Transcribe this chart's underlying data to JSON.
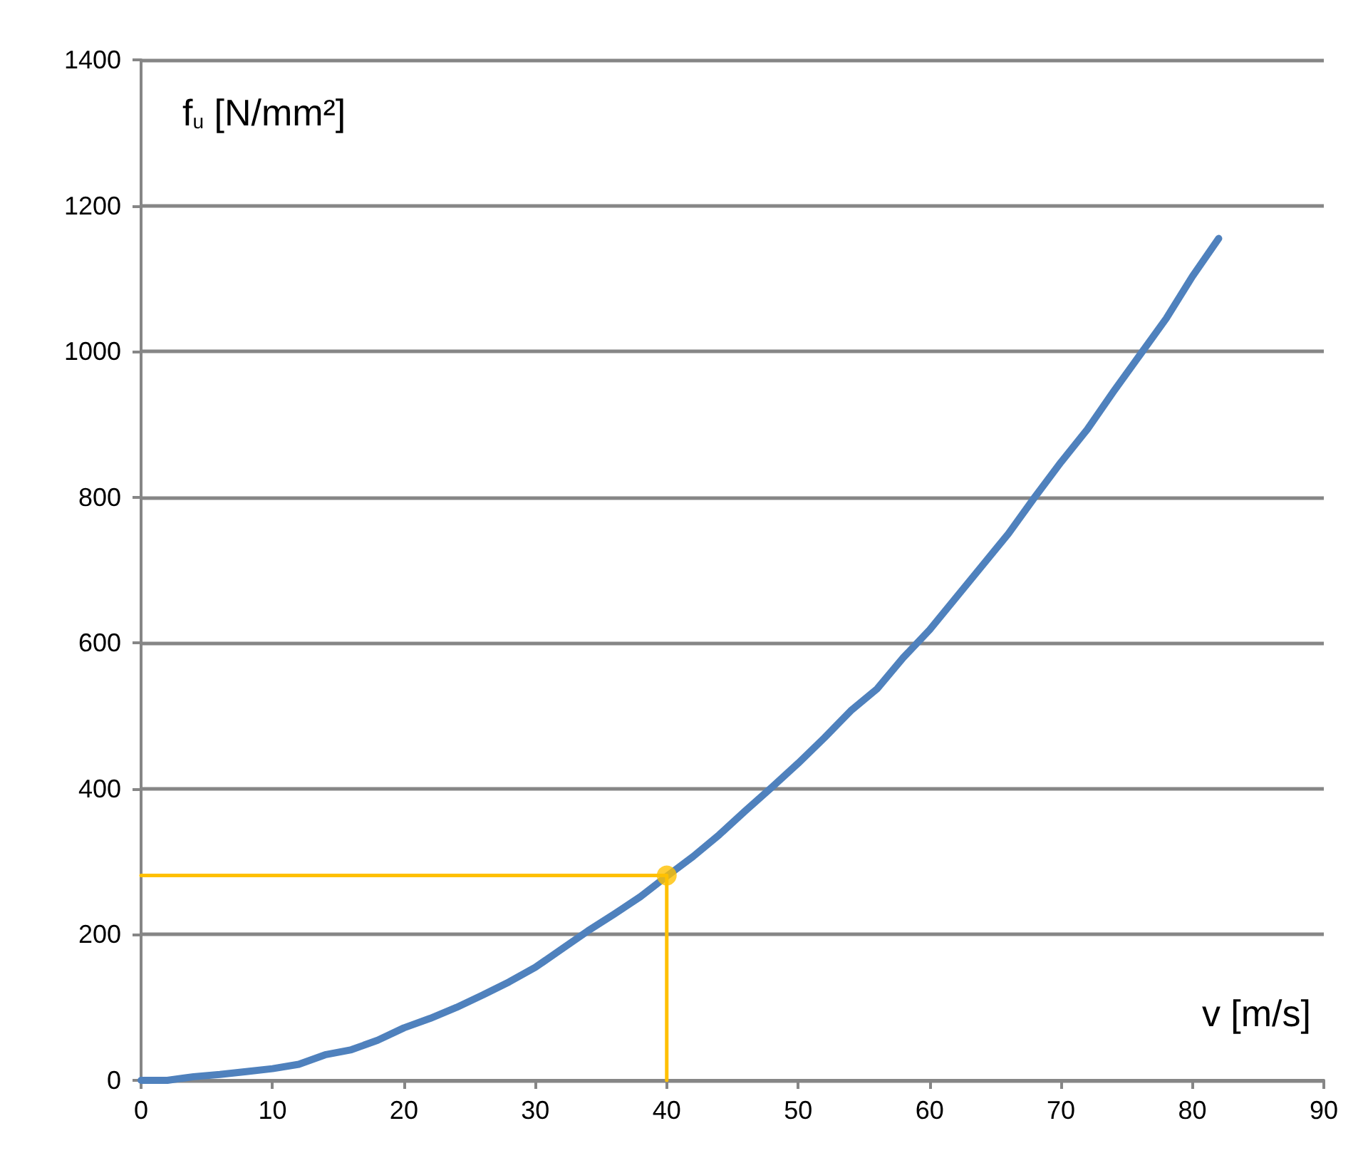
{
  "chart_data": {
    "type": "line",
    "xlabel": "v [m/s]",
    "ylabel": "f$_{u}$ [N/mm²]",
    "xlim": [
      0,
      90
    ],
    "xticks": [
      0,
      10,
      20,
      30,
      40,
      50,
      60,
      70,
      80,
      90
    ],
    "ylim": [
      0,
      1400
    ],
    "yticks": [
      0,
      200,
      400,
      600,
      800,
      1000,
      1200,
      1400
    ],
    "grid": "y",
    "marker": "none",
    "line_style": "solid",
    "series": [
      {
        "color": "#4f81bd",
        "x": [
          0,
          2,
          4,
          6,
          8,
          10,
          12,
          14,
          16,
          18,
          20,
          22,
          24,
          26,
          28,
          30,
          32,
          34,
          36,
          38,
          40,
          42,
          44,
          46,
          48,
          50,
          52,
          54,
          56,
          58,
          60,
          62,
          64,
          66,
          68,
          70,
          72,
          74,
          76,
          78,
          80,
          82
        ],
        "values": [
          0,
          0,
          5,
          8,
          12,
          16,
          22,
          35,
          42,
          55,
          72,
          85,
          100,
          117,
          135,
          155,
          180,
          205,
          228,
          252,
          280,
          307,
          337,
          370,
          402,
          435,
          470,
          507,
          537,
          580,
          618,
          662,
          706,
          750,
          800,
          848,
          893,
          945,
          995,
          1045,
          1103,
          1155
        ]
      },
      {
        "color": "#ffc000",
        "x": [
          0,
          40,
          40
        ],
        "values": [
          281,
          281,
          0
        ]
      },
      {
        "type": "scatter",
        "color": "#ffc000",
        "marker": "circle",
        "x": [
          40
        ],
        "values": [
          281
        ]
      }
    ]
  }
}
